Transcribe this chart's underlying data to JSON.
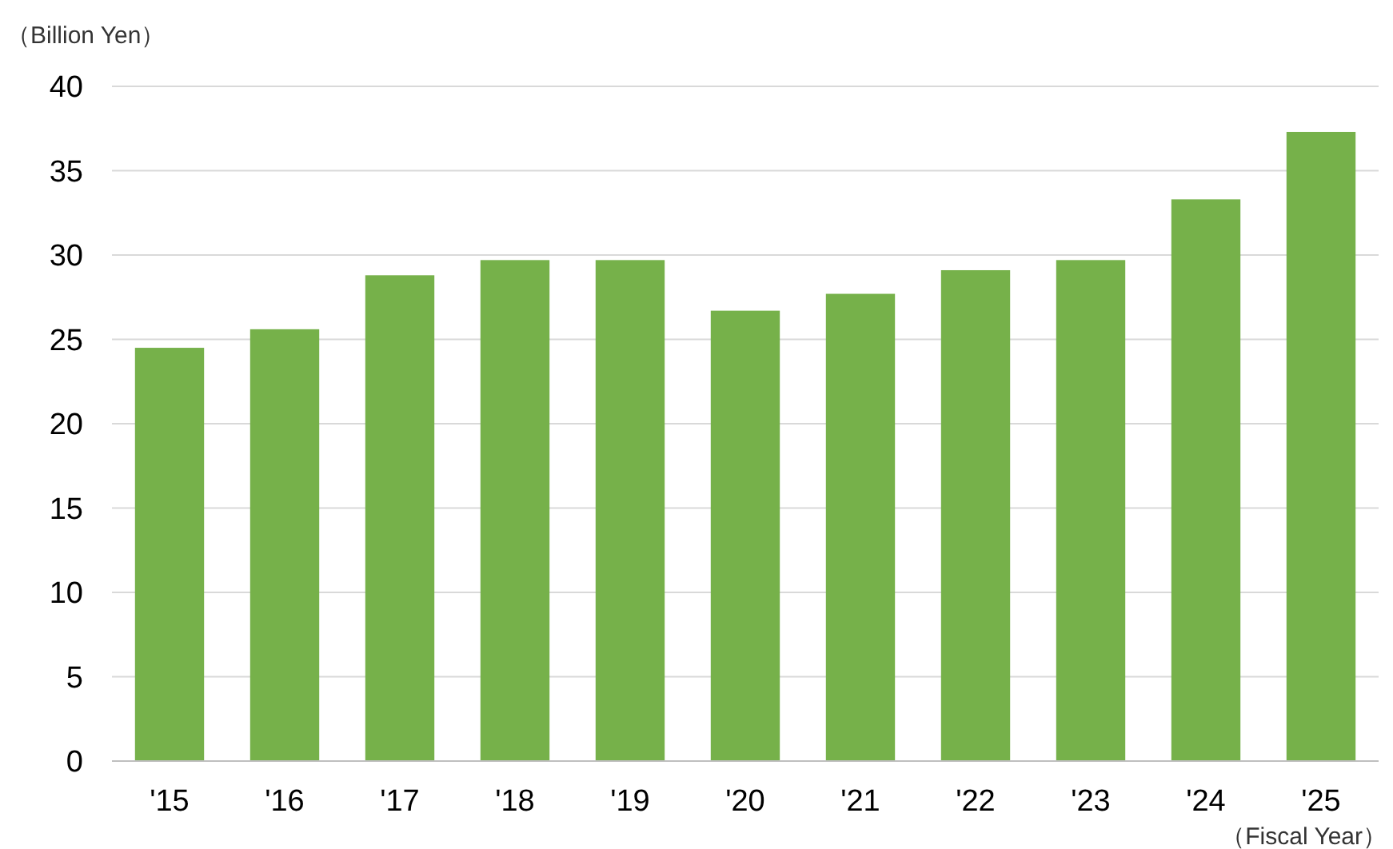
{
  "chart_data": {
    "type": "bar",
    "ylabel": "（Billion Yen）",
    "xlabel": "（Fiscal Year）",
    "categories": [
      "'15",
      "'16",
      "'17",
      "'18",
      "'19",
      "'20",
      "'21",
      "'22",
      "'23",
      "'24",
      "'25"
    ],
    "values": [
      24.5,
      25.6,
      28.8,
      29.7,
      29.7,
      26.7,
      27.7,
      29.1,
      29.7,
      33.3,
      37.3
    ],
    "color": "#76b14a",
    "ylim": [
      0,
      40
    ],
    "yticks": [
      0,
      5,
      10,
      15,
      20,
      25,
      30,
      35,
      40
    ],
    "grid": "y"
  }
}
